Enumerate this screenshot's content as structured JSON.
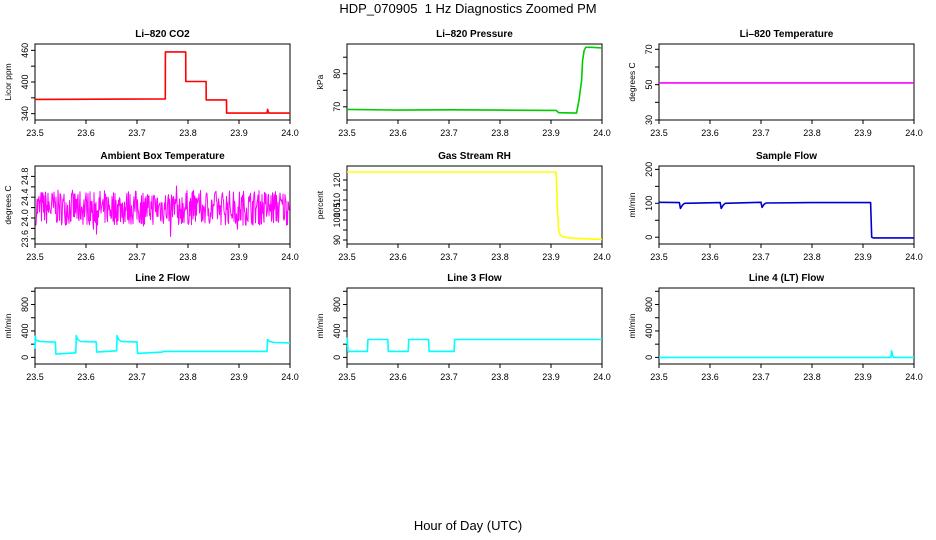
{
  "title": "HDP_070905  1 Hz Diagnostics Zoomed PM",
  "xlabel": "Hour of Day (UTC)",
  "chart_data": [
    {
      "type": "line",
      "title": "Li–820 CO2",
      "ylabel": "Licor ppm",
      "color": "#ff0000",
      "xlim": [
        23.5,
        24.0
      ],
      "ylim": [
        328,
        472
      ],
      "xticks": [
        "23.5",
        "23.6",
        "23.7",
        "23.8",
        "23.9",
        "24.0"
      ],
      "yticks": [
        340,
        370,
        400,
        430,
        460
      ],
      "yticklabels": [
        "340",
        "",
        "400",
        "",
        "460"
      ],
      "series": [
        {
          "x": [
            23.5,
            23.7555,
            23.7556,
            23.7955,
            23.7956,
            23.8355,
            23.8356,
            23.8755,
            23.8756,
            23.955,
            23.956,
            23.958,
            23.96,
            24.0
          ],
          "y": [
            367,
            368,
            457,
            457,
            401,
            401,
            366,
            366,
            341,
            341,
            348,
            341,
            341,
            341
          ]
        }
      ]
    },
    {
      "type": "line",
      "title": "Li–820 Pressure",
      "ylabel": "kPa",
      "color": "#00cc00",
      "xlim": [
        23.5,
        24.0
      ],
      "ylim": [
        66,
        89
      ],
      "xticks": [
        "23.5",
        "23.6",
        "23.7",
        "23.8",
        "23.9",
        "24.0"
      ],
      "yticks": [
        70,
        75,
        80,
        85
      ],
      "yticklabels": [
        "70",
        "",
        "80",
        ""
      ],
      "series": [
        {
          "x": [
            23.5,
            23.6,
            23.7,
            23.8,
            23.91,
            23.915,
            23.95,
            23.955,
            23.96,
            23.962,
            23.965,
            23.968,
            23.98,
            24.0
          ],
          "y": [
            69.2,
            69.0,
            69.1,
            69.0,
            68.9,
            68.2,
            68.1,
            72,
            78,
            84,
            87,
            88,
            88,
            87.8
          ]
        }
      ]
    },
    {
      "type": "line",
      "title": "Li–820 Temperature",
      "ylabel": "degrees C",
      "color": "#ff00ff",
      "xlim": [
        23.5,
        24.0
      ],
      "ylim": [
        30,
        73
      ],
      "xticks": [
        "23.5",
        "23.6",
        "23.7",
        "23.8",
        "23.9",
        "24.0"
      ],
      "yticks": [
        30,
        40,
        50,
        60,
        70
      ],
      "yticklabels": [
        "30",
        "",
        "50",
        "",
        "70"
      ],
      "series": [
        {
          "x": [
            23.5,
            24.0
          ],
          "y": [
            51,
            51
          ]
        }
      ]
    },
    {
      "type": "line",
      "title": "Ambient Box Temperature",
      "ylabel": "degrees C",
      "color": "#ff00ff",
      "xlim": [
        23.5,
        24.0
      ],
      "ylim": [
        23.5,
        25.0
      ],
      "xticks": [
        "23.5",
        "23.6",
        "23.7",
        "23.8",
        "23.9",
        "24.0"
      ],
      "yticks": [
        23.6,
        23.8,
        24.0,
        24.2,
        24.4,
        24.6,
        24.8
      ],
      "yticklabels": [
        "23.6",
        "",
        "24.0",
        "",
        "24.4",
        "",
        "24.8"
      ],
      "noise": {
        "center": 24.2,
        "amplitude": 0.34,
        "spike": 0.6
      }
    },
    {
      "type": "line",
      "title": "Gas Stream RH",
      "ylabel": "percent",
      "color": "#ffff00",
      "xlim": [
        23.5,
        24.0
      ],
      "ylim": [
        88,
        127
      ],
      "xticks": [
        "23.5",
        "23.6",
        "23.7",
        "23.8",
        "23.9",
        "24.0"
      ],
      "yticks": [
        90,
        95,
        100,
        105,
        110,
        115,
        120
      ],
      "yticklabels": [
        "90",
        "",
        "100",
        "105",
        "110",
        "",
        "120"
      ],
      "series": [
        {
          "x": [
            23.5,
            23.7,
            23.91,
            23.912,
            23.915,
            23.918,
            23.922,
            23.93,
            23.95,
            23.97,
            24.0
          ],
          "y": [
            124,
            124,
            124,
            110,
            95,
            92.5,
            91.8,
            91.2,
            90.8,
            90.6,
            90.3
          ]
        }
      ]
    },
    {
      "type": "line",
      "title": "Sample Flow",
      "ylabel": "ml/min",
      "color": "#0000cc",
      "xlim": [
        23.5,
        24.0
      ],
      "ylim": [
        -20,
        210
      ],
      "xticks": [
        "23.5",
        "23.6",
        "23.7",
        "23.8",
        "23.9",
        "24.0"
      ],
      "yticks": [
        0,
        50,
        100,
        150,
        200
      ],
      "yticklabels": [
        "0",
        "",
        "100",
        "",
        "200"
      ],
      "series": [
        {
          "x": [
            23.5,
            23.54,
            23.542,
            23.546,
            23.55,
            23.62,
            23.622,
            23.626,
            23.63,
            23.7,
            23.702,
            23.706,
            23.71,
            23.8,
            23.915,
            23.917,
            23.92,
            24.0
          ],
          "y": [
            103,
            102,
            85,
            95,
            100,
            102,
            85,
            95,
            100,
            103,
            88,
            97,
            101,
            102,
            102,
            0,
            -2,
            -2
          ]
        }
      ]
    },
    {
      "type": "line",
      "title": "Line 2 Flow",
      "ylabel": "ml/min",
      "color": "#00ffff",
      "xlim": [
        23.5,
        24.0
      ],
      "ylim": [
        -100,
        1050
      ],
      "xticks": [
        "23.5",
        "23.6",
        "23.7",
        "23.8",
        "23.9",
        "24.0"
      ],
      "yticks": [
        0,
        200,
        400,
        600,
        800,
        1000
      ],
      "yticklabels": [
        "0",
        "",
        "400",
        "",
        "800",
        ""
      ],
      "series": [
        {
          "x": [
            23.5,
            23.5005,
            23.502,
            23.51,
            23.54,
            23.541,
            23.58,
            23.581,
            23.584,
            23.59,
            23.62,
            23.621,
            23.66,
            23.661,
            23.664,
            23.67,
            23.7,
            23.701,
            23.75,
            23.751,
            23.955,
            23.956,
            23.96,
            23.97,
            24.0
          ],
          "y": [
            130,
            320,
            260,
            240,
            230,
            50,
            70,
            330,
            270,
            240,
            235,
            80,
            100,
            330,
            270,
            240,
            235,
            60,
            80,
            90,
            90,
            270,
            240,
            225,
            220
          ]
        }
      ]
    },
    {
      "type": "line",
      "title": "Line 3 Flow",
      "ylabel": "ml/min",
      "color": "#00ffff",
      "xlim": [
        23.5,
        24.0
      ],
      "ylim": [
        -100,
        1050
      ],
      "xticks": [
        "23.5",
        "23.6",
        "23.7",
        "23.8",
        "23.9",
        "24.0"
      ],
      "yticks": [
        0,
        200,
        400,
        600,
        800,
        1000
      ],
      "yticklabels": [
        "0",
        "",
        "400",
        "",
        "800",
        ""
      ],
      "series": [
        {
          "x": [
            23.5,
            23.5005,
            23.502,
            23.504,
            23.54,
            23.541,
            23.58,
            23.581,
            23.62,
            23.621,
            23.66,
            23.661,
            23.7,
            23.701,
            23.71,
            23.711,
            23.955,
            24.0
          ],
          "y": [
            200,
            290,
            80,
            90,
            90,
            270,
            270,
            90,
            90,
            270,
            270,
            90,
            90,
            90,
            90,
            270,
            270,
            270
          ]
        }
      ]
    },
    {
      "type": "line",
      "title": "Line 4 (LT) Flow",
      "ylabel": "ml/min",
      "color": "#00ffff",
      "xlim": [
        23.5,
        24.0
      ],
      "ylim": [
        -100,
        1050
      ],
      "xticks": [
        "23.5",
        "23.6",
        "23.7",
        "23.8",
        "23.9",
        "24.0"
      ],
      "yticks": [
        0,
        200,
        400,
        600,
        800,
        1000
      ],
      "yticklabels": [
        "0",
        "",
        "400",
        "",
        "800",
        ""
      ],
      "series": [
        {
          "x": [
            23.5,
            23.955,
            23.956,
            23.958,
            23.96,
            24.0
          ],
          "y": [
            0,
            0,
            100,
            30,
            0,
            0
          ]
        }
      ]
    }
  ]
}
